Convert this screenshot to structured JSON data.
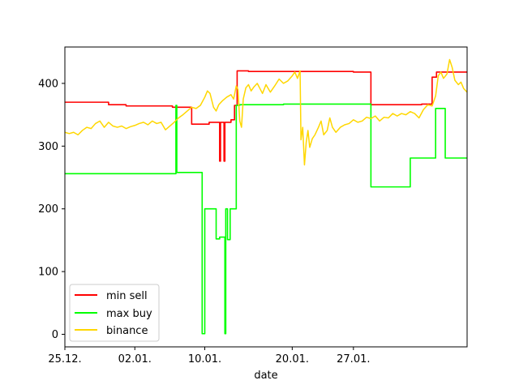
{
  "chart_data": {
    "type": "line",
    "title": "",
    "xlabel": "date",
    "ylabel": "",
    "x_tick_labels": [
      "25.12.",
      "02.01.",
      "10.01.",
      "20.01.",
      "27.01."
    ],
    "x_tick_days": [
      0,
      8,
      16,
      26,
      33
    ],
    "xlim_days": [
      0,
      46
    ],
    "ylim": [
      -20,
      458
    ],
    "y_ticks": [
      0,
      100,
      200,
      300,
      400
    ],
    "grid": false,
    "legend_placement": "lower-left",
    "colors": {
      "min sell": "#ff0000",
      "max buy": "#00ff00",
      "binance": "#ffd700"
    },
    "series": [
      {
        "name": "min sell",
        "step": true,
        "points": [
          [
            0,
            370
          ],
          [
            5,
            370
          ],
          [
            5,
            366
          ],
          [
            7,
            366
          ],
          [
            7,
            364
          ],
          [
            12.3,
            364
          ],
          [
            12.3,
            362
          ],
          [
            13,
            362
          ],
          [
            14.5,
            362
          ],
          [
            14.5,
            335
          ],
          [
            16.5,
            335
          ],
          [
            16.5,
            338
          ],
          [
            17.7,
            338
          ],
          [
            17.7,
            276
          ],
          [
            17.8,
            276
          ],
          [
            17.8,
            338
          ],
          [
            18.2,
            338
          ],
          [
            18.2,
            276
          ],
          [
            18.3,
            276
          ],
          [
            18.3,
            338
          ],
          [
            19,
            338
          ],
          [
            19,
            342
          ],
          [
            19.4,
            342
          ],
          [
            19.4,
            365
          ],
          [
            19.7,
            365
          ],
          [
            19.7,
            420
          ],
          [
            21,
            420
          ],
          [
            21,
            419
          ],
          [
            33,
            419
          ],
          [
            33,
            418
          ],
          [
            35,
            418
          ],
          [
            35,
            366
          ],
          [
            40.8,
            366
          ],
          [
            40.8,
            367
          ],
          [
            42,
            367
          ],
          [
            42,
            410
          ],
          [
            42.5,
            410
          ],
          [
            42.5,
            418
          ],
          [
            46,
            418
          ]
        ]
      },
      {
        "name": "max buy",
        "step": true,
        "points": [
          [
            0,
            256
          ],
          [
            12.7,
            256
          ],
          [
            12.7,
            365
          ],
          [
            12.8,
            365
          ],
          [
            12.8,
            258
          ],
          [
            15.7,
            258
          ],
          [
            15.7,
            1
          ],
          [
            16,
            1
          ],
          [
            16,
            200
          ],
          [
            17.3,
            200
          ],
          [
            17.3,
            152
          ],
          [
            17.7,
            152
          ],
          [
            17.7,
            155
          ],
          [
            18.3,
            155
          ],
          [
            18.3,
            1
          ],
          [
            18.4,
            1
          ],
          [
            18.4,
            200
          ],
          [
            18.6,
            200
          ],
          [
            18.6,
            151
          ],
          [
            18.9,
            151
          ],
          [
            18.9,
            200
          ],
          [
            19.2,
            200
          ],
          [
            19.2,
            200
          ],
          [
            19.6,
            200
          ],
          [
            19.6,
            365
          ],
          [
            20,
            365
          ],
          [
            20,
            366
          ],
          [
            25,
            366
          ],
          [
            25,
            367
          ],
          [
            35,
            367
          ],
          [
            35,
            235
          ],
          [
            39.5,
            235
          ],
          [
            39.5,
            281
          ],
          [
            42.4,
            281
          ],
          [
            42.4,
            360
          ],
          [
            43.5,
            360
          ],
          [
            43.5,
            281
          ],
          [
            46,
            281
          ]
        ]
      },
      {
        "name": "binance",
        "step": false,
        "points": [
          [
            0,
            322
          ],
          [
            0.5,
            320
          ],
          [
            1,
            322
          ],
          [
            1.5,
            318
          ],
          [
            2,
            325
          ],
          [
            2.5,
            330
          ],
          [
            3,
            328
          ],
          [
            3.5,
            336
          ],
          [
            4,
            340
          ],
          [
            4.5,
            330
          ],
          [
            5,
            338
          ],
          [
            5.5,
            332
          ],
          [
            6,
            330
          ],
          [
            6.5,
            332
          ],
          [
            7,
            328
          ],
          [
            7.5,
            331
          ],
          [
            8,
            333
          ],
          [
            8.5,
            336
          ],
          [
            9,
            338
          ],
          [
            9.5,
            334
          ],
          [
            10,
            340
          ],
          [
            10.5,
            336
          ],
          [
            11,
            338
          ],
          [
            11.5,
            326
          ],
          [
            12,
            332
          ],
          [
            12.5,
            338
          ],
          [
            13,
            345
          ],
          [
            13.5,
            350
          ],
          [
            14,
            356
          ],
          [
            14.5,
            362
          ],
          [
            15,
            360
          ],
          [
            15.5,
            365
          ],
          [
            16,
            378
          ],
          [
            16.3,
            388
          ],
          [
            16.6,
            384
          ],
          [
            17,
            362
          ],
          [
            17.3,
            356
          ],
          [
            17.6,
            366
          ],
          [
            18,
            372
          ],
          [
            18.5,
            378
          ],
          [
            19,
            382
          ],
          [
            19.3,
            375
          ],
          [
            19.6,
            396
          ],
          [
            19.8,
            390
          ],
          [
            20,
            340
          ],
          [
            20.2,
            330
          ],
          [
            20.4,
            375
          ],
          [
            20.7,
            393
          ],
          [
            21,
            398
          ],
          [
            21.3,
            388
          ],
          [
            21.6,
            394
          ],
          [
            22,
            400
          ],
          [
            22.3,
            392
          ],
          [
            22.6,
            384
          ],
          [
            23,
            398
          ],
          [
            23.5,
            386
          ],
          [
            24,
            396
          ],
          [
            24.5,
            407
          ],
          [
            25,
            400
          ],
          [
            25.5,
            404
          ],
          [
            26,
            412
          ],
          [
            26.3,
            418
          ],
          [
            26.6,
            408
          ],
          [
            26.9,
            420
          ],
          [
            27,
            310
          ],
          [
            27.2,
            330
          ],
          [
            27.4,
            270
          ],
          [
            27.6,
            306
          ],
          [
            27.8,
            325
          ],
          [
            28,
            298
          ],
          [
            28.3,
            312
          ],
          [
            28.6,
            318
          ],
          [
            29,
            330
          ],
          [
            29.3,
            340
          ],
          [
            29.6,
            318
          ],
          [
            30,
            325
          ],
          [
            30.3,
            345
          ],
          [
            30.6,
            330
          ],
          [
            31,
            322
          ],
          [
            31.5,
            330
          ],
          [
            32,
            334
          ],
          [
            32.5,
            336
          ],
          [
            33,
            342
          ],
          [
            33.5,
            338
          ],
          [
            34,
            340
          ],
          [
            34.5,
            346
          ],
          [
            35,
            344
          ],
          [
            35.5,
            348
          ],
          [
            36,
            340
          ],
          [
            36.5,
            346
          ],
          [
            37,
            345
          ],
          [
            37.5,
            352
          ],
          [
            38,
            348
          ],
          [
            38.5,
            352
          ],
          [
            39,
            350
          ],
          [
            39.5,
            355
          ],
          [
            40,
            352
          ],
          [
            40.5,
            345
          ],
          [
            41,
            358
          ],
          [
            41.5,
            366
          ],
          [
            42,
            364
          ],
          [
            42.4,
            380
          ],
          [
            42.7,
            412
          ],
          [
            43,
            418
          ],
          [
            43.3,
            408
          ],
          [
            43.7,
            415
          ],
          [
            44,
            438
          ],
          [
            44.3,
            425
          ],
          [
            44.6,
            405
          ],
          [
            45,
            398
          ],
          [
            45.3,
            402
          ],
          [
            45.6,
            392
          ],
          [
            46,
            386
          ]
        ]
      }
    ]
  }
}
